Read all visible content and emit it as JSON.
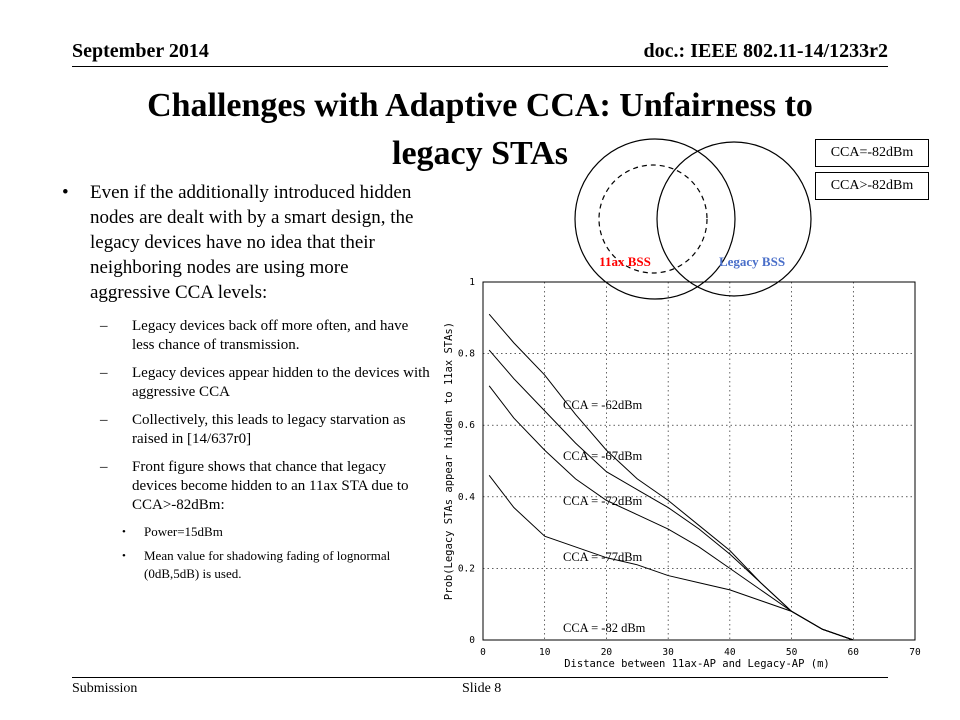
{
  "header": {
    "date": "September 2014",
    "doc": "doc.: IEEE 802.11-14/1233r2"
  },
  "title": {
    "line1": "Challenges with Adaptive CCA: Unfairness to",
    "line2": "legacy STAs"
  },
  "bullets": {
    "main": "Even if the additionally introduced hidden nodes are dealt with by a smart design, the legacy devices have no idea that their neighboring nodes are using more aggressive CCA levels:",
    "sub": [
      "Legacy devices back off more often, and have less chance of transmission.",
      "Legacy devices appear hidden to the devices with aggressive CCA",
      "Collectively, this leads to legacy starvation as raised in [14/637r0]",
      "Front figure shows that chance that legacy devices become hidden to an 11ax STA due to CCA>-82dBm:"
    ],
    "subsub": [
      "Power=15dBm",
      "Mean value for shadowing fading of lognormal  (0dB,5dB) is used."
    ]
  },
  "diagram": {
    "label_11ax": "11ax BSS",
    "label_legacy": "Legacy BSS",
    "legend_solid": "CCA=-82dBm",
    "legend_dashed": "CCA>-82dBm",
    "color_11ax": "#ff0000",
    "color_legacy": "#4a6fc9"
  },
  "chart_data": {
    "type": "line",
    "xlabel": "Distance between 11ax-AP and Legacy-AP (m)",
    "ylabel": "Prob(Legacy STAs appear hidden to 11ax STAs)",
    "xlim": [
      0,
      70
    ],
    "ylim": [
      0,
      1
    ],
    "xticks": [
      0,
      10,
      20,
      30,
      40,
      50,
      60,
      70
    ],
    "yticks": [
      0,
      0.2,
      0.4,
      0.6,
      0.8,
      1
    ],
    "xtick_labels": [
      "0",
      "10",
      "20",
      "30",
      "40",
      "50",
      "60",
      "70"
    ],
    "ytick_labels": [
      "0",
      "0.2",
      "0.4",
      "0.6",
      "0.8",
      "1"
    ],
    "grid": true,
    "series": [
      {
        "name": "CCA = -62dBm",
        "x": [
          1,
          5,
          10,
          15,
          20,
          25,
          30,
          35,
          40,
          45,
          50,
          55,
          60
        ],
        "y": [
          0.91,
          0.83,
          0.74,
          0.63,
          0.53,
          0.45,
          0.39,
          0.32,
          0.25,
          0.16,
          0.08,
          0.03,
          0.0
        ]
      },
      {
        "name": "CCA = -67dBm",
        "x": [
          1,
          5,
          10,
          15,
          20,
          25,
          30,
          35,
          40,
          45,
          50,
          55,
          60
        ],
        "y": [
          0.81,
          0.73,
          0.64,
          0.55,
          0.47,
          0.42,
          0.37,
          0.31,
          0.24,
          0.16,
          0.08,
          0.03,
          0.0
        ]
      },
      {
        "name": "CCA = -72dBm",
        "x": [
          1,
          5,
          10,
          15,
          20,
          25,
          30,
          35,
          40,
          45,
          50,
          55,
          60
        ],
        "y": [
          0.71,
          0.62,
          0.53,
          0.45,
          0.39,
          0.35,
          0.31,
          0.26,
          0.2,
          0.14,
          0.08,
          0.03,
          0.0
        ]
      },
      {
        "name": "CCA = -77dBm",
        "x": [
          1,
          5,
          10,
          15,
          20,
          25,
          30,
          35,
          40,
          45,
          50,
          55,
          60
        ],
        "y": [
          0.46,
          0.37,
          0.29,
          0.26,
          0.23,
          0.21,
          0.18,
          0.16,
          0.14,
          0.11,
          0.08,
          0.03,
          0.0
        ]
      },
      {
        "name": "CCA = -82 dBm",
        "x": [
          1,
          60
        ],
        "y": [
          0.0,
          0.0
        ]
      }
    ]
  },
  "footer": {
    "submission": "Submission",
    "slide": "Slide 8"
  }
}
